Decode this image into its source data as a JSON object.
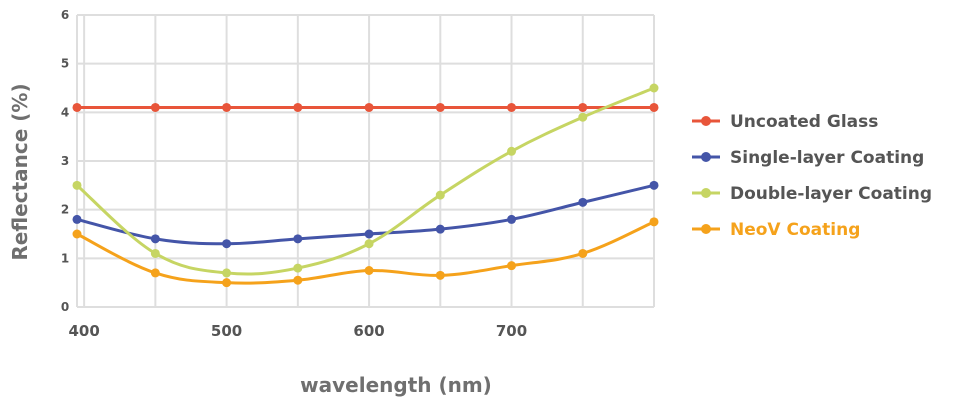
{
  "chart_data": {
    "type": "line",
    "xlabel": "wavelength (nm)",
    "ylabel": "Reflectance (%)",
    "xlim": [
      395,
      800
    ],
    "ylim": [
      0,
      6
    ],
    "x_ticks": [
      400,
      500,
      600,
      700
    ],
    "y_ticks": [
      0,
      1,
      2,
      3,
      4,
      5,
      6
    ],
    "grid": true,
    "legend_position": "right",
    "x": [
      395,
      450,
      500,
      550,
      600,
      650,
      700,
      750,
      800
    ],
    "series": [
      {
        "name": "Uncoated Glass",
        "color": "#e8553a",
        "values": [
          4.1,
          4.1,
          4.1,
          4.1,
          4.1,
          4.1,
          4.1,
          4.1,
          4.1
        ]
      },
      {
        "name": "Single-layer Coating",
        "color": "#4455a8",
        "values": [
          1.8,
          1.4,
          1.3,
          1.4,
          1.5,
          1.6,
          1.8,
          2.15,
          2.5
        ]
      },
      {
        "name": "Double-layer Coating",
        "color": "#c6d563",
        "values": [
          2.5,
          1.1,
          0.7,
          0.8,
          1.3,
          2.3,
          3.2,
          3.9,
          4.5
        ]
      },
      {
        "name": "NeoV Coating",
        "color": "#f5a21b",
        "values": [
          1.5,
          0.7,
          0.5,
          0.55,
          0.75,
          0.65,
          0.85,
          1.1,
          1.75
        ]
      }
    ]
  }
}
